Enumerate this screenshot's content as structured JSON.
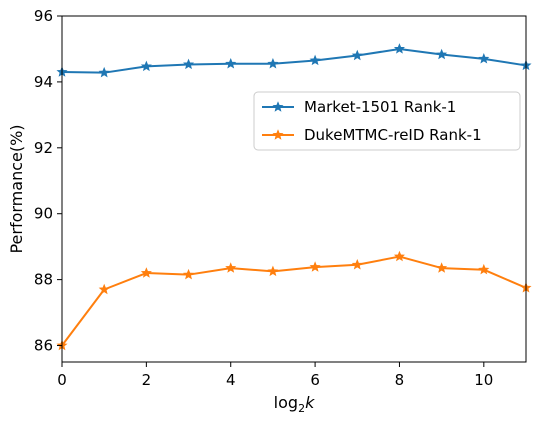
{
  "chart_data": {
    "type": "line",
    "title": "",
    "xlabel": "log",
    "xlabel_sub": "2",
    "xlabel_var": "k",
    "ylabel": "Performance(%)",
    "xlim": [
      0,
      11
    ],
    "ylim": [
      85.5,
      96
    ],
    "xticks": [
      0,
      2,
      4,
      6,
      8,
      10
    ],
    "yticks": [
      86,
      88,
      90,
      92,
      94,
      96
    ],
    "grid": false,
    "legend_position": "center-right",
    "x": [
      0,
      1,
      2,
      3,
      4,
      5,
      6,
      7,
      8,
      9,
      10,
      11
    ],
    "series": [
      {
        "name": "Market-1501 Rank-1",
        "color": "#1f77b4",
        "marker": "star",
        "values": [
          94.3,
          94.28,
          94.47,
          94.53,
          94.55,
          94.55,
          94.65,
          94.8,
          95.0,
          94.83,
          94.7,
          94.5
        ]
      },
      {
        "name": "DukeMTMC-reID Rank-1",
        "color": "#ff7f0e",
        "marker": "star",
        "values": [
          86.0,
          87.7,
          88.2,
          88.15,
          88.35,
          88.25,
          88.38,
          88.45,
          88.7,
          88.35,
          88.3,
          87.75
        ]
      }
    ]
  }
}
